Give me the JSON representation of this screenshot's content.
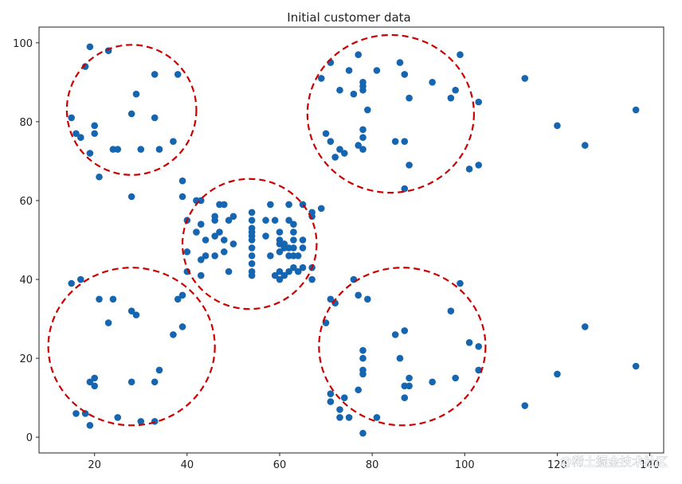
{
  "chart_data": {
    "type": "scatter",
    "title": "Initial customer data",
    "xlabel": "",
    "ylabel": "",
    "xlim": [
      8,
      143
    ],
    "ylim": [
      -4,
      104
    ],
    "xticks": [
      20,
      40,
      60,
      80,
      100,
      120,
      140
    ],
    "yticks": [
      0,
      20,
      40,
      60,
      80,
      100
    ],
    "grid": false,
    "point_color": "#1565b0",
    "circle_color": "#cc0000",
    "points": [
      [
        15,
        39
      ],
      [
        15,
        81
      ],
      [
        16,
        6
      ],
      [
        16,
        77
      ],
      [
        17,
        40
      ],
      [
        17,
        76
      ],
      [
        18,
        6
      ],
      [
        18,
        94
      ],
      [
        19,
        3
      ],
      [
        19,
        14
      ],
      [
        19,
        72
      ],
      [
        19,
        99
      ],
      [
        20,
        13
      ],
      [
        20,
        15
      ],
      [
        20,
        77
      ],
      [
        20,
        79
      ],
      [
        21,
        35
      ],
      [
        21,
        66
      ],
      [
        23,
        29
      ],
      [
        23,
        98
      ],
      [
        24,
        35
      ],
      [
        24,
        73
      ],
      [
        25,
        5
      ],
      [
        25,
        73
      ],
      [
        28,
        14
      ],
      [
        28,
        32
      ],
      [
        28,
        61
      ],
      [
        28,
        82
      ],
      [
        29,
        31
      ],
      [
        29,
        87
      ],
      [
        30,
        4
      ],
      [
        30,
        73
      ],
      [
        33,
        4
      ],
      [
        33,
        14
      ],
      [
        33,
        81
      ],
      [
        33,
        92
      ],
      [
        34,
        17
      ],
      [
        34,
        73
      ],
      [
        37,
        26
      ],
      [
        37,
        75
      ],
      [
        38,
        35
      ],
      [
        38,
        92
      ],
      [
        39,
        28
      ],
      [
        39,
        36
      ],
      [
        39,
        61
      ],
      [
        39,
        65
      ],
      [
        40,
        42
      ],
      [
        40,
        47
      ],
      [
        40,
        55
      ],
      [
        42,
        52
      ],
      [
        42,
        60
      ],
      [
        43,
        41
      ],
      [
        43,
        45
      ],
      [
        43,
        54
      ],
      [
        43,
        60
      ],
      [
        44,
        46
      ],
      [
        44,
        50
      ],
      [
        46,
        46
      ],
      [
        46,
        51
      ],
      [
        46,
        55
      ],
      [
        46,
        56
      ],
      [
        47,
        52
      ],
      [
        47,
        59
      ],
      [
        48,
        47
      ],
      [
        48,
        50
      ],
      [
        48,
        59
      ],
      [
        49,
        42
      ],
      [
        49,
        55
      ],
      [
        50,
        49
      ],
      [
        50,
        56
      ],
      [
        54,
        41
      ],
      [
        54,
        42
      ],
      [
        54,
        44
      ],
      [
        54,
        46
      ],
      [
        54,
        48
      ],
      [
        54,
        50
      ],
      [
        54,
        51
      ],
      [
        54,
        52
      ],
      [
        54,
        53
      ],
      [
        54,
        55
      ],
      [
        54,
        57
      ],
      [
        57,
        51
      ],
      [
        57,
        55
      ],
      [
        58,
        46
      ],
      [
        58,
        59
      ],
      [
        59,
        41
      ],
      [
        59,
        55
      ],
      [
        60,
        40
      ],
      [
        60,
        42
      ],
      [
        60,
        47
      ],
      [
        60,
        49
      ],
      [
        60,
        50
      ],
      [
        60,
        52
      ],
      [
        61,
        41
      ],
      [
        61,
        48
      ],
      [
        61,
        49
      ],
      [
        62,
        42
      ],
      [
        62,
        46
      ],
      [
        62,
        48
      ],
      [
        62,
        55
      ],
      [
        62,
        59
      ],
      [
        63,
        43
      ],
      [
        63,
        46
      ],
      [
        63,
        48
      ],
      [
        63,
        50
      ],
      [
        63,
        52
      ],
      [
        63,
        54
      ],
      [
        64,
        42
      ],
      [
        64,
        46
      ],
      [
        65,
        43
      ],
      [
        65,
        48
      ],
      [
        65,
        50
      ],
      [
        65,
        59
      ],
      [
        67,
        40
      ],
      [
        67,
        43
      ],
      [
        67,
        56
      ],
      [
        67,
        57
      ],
      [
        69,
        58
      ],
      [
        69,
        91
      ],
      [
        70,
        29
      ],
      [
        70,
        77
      ],
      [
        71,
        9
      ],
      [
        71,
        11
      ],
      [
        71,
        35
      ],
      [
        71,
        75
      ],
      [
        71,
        95
      ],
      [
        72,
        34
      ],
      [
        72,
        71
      ],
      [
        73,
        5
      ],
      [
        73,
        7
      ],
      [
        73,
        73
      ],
      [
        73,
        88
      ],
      [
        74,
        10
      ],
      [
        74,
        72
      ],
      [
        75,
        5
      ],
      [
        75,
        93
      ],
      [
        76,
        40
      ],
      [
        76,
        87
      ],
      [
        77,
        12
      ],
      [
        77,
        36
      ],
      [
        77,
        74
      ],
      [
        77,
        97
      ],
      [
        78,
        1
      ],
      [
        78,
        16
      ],
      [
        78,
        17
      ],
      [
        78,
        20
      ],
      [
        78,
        22
      ],
      [
        78,
        73
      ],
      [
        78,
        76
      ],
      [
        78,
        78
      ],
      [
        78,
        88
      ],
      [
        78,
        89
      ],
      [
        78,
        90
      ],
      [
        79,
        35
      ],
      [
        79,
        83
      ],
      [
        81,
        5
      ],
      [
        81,
        93
      ],
      [
        85,
        26
      ],
      [
        85,
        75
      ],
      [
        86,
        20
      ],
      [
        86,
        95
      ],
      [
        87,
        10
      ],
      [
        87,
        13
      ],
      [
        87,
        27
      ],
      [
        87,
        63
      ],
      [
        87,
        75
      ],
      [
        87,
        92
      ],
      [
        88,
        13
      ],
      [
        88,
        15
      ],
      [
        88,
        69
      ],
      [
        88,
        86
      ],
      [
        93,
        14
      ],
      [
        93,
        90
      ],
      [
        97,
        32
      ],
      [
        97,
        86
      ],
      [
        98,
        15
      ],
      [
        98,
        88
      ],
      [
        99,
        39
      ],
      [
        99,
        97
      ],
      [
        101,
        24
      ],
      [
        101,
        68
      ],
      [
        103,
        17
      ],
      [
        103,
        23
      ],
      [
        103,
        69
      ],
      [
        103,
        85
      ],
      [
        113,
        8
      ],
      [
        113,
        91
      ],
      [
        120,
        16
      ],
      [
        120,
        79
      ],
      [
        126,
        28
      ],
      [
        126,
        74
      ],
      [
        137,
        18
      ],
      [
        137,
        83
      ]
    ],
    "cluster_circles": [
      {
        "cx": 28,
        "cy": 83,
        "r_x": 14,
        "r_y": 16.5
      },
      {
        "cx": 84,
        "cy": 82,
        "r_x": 18,
        "r_y": 20
      },
      {
        "cx": 53.5,
        "cy": 49,
        "r_x": 14.5,
        "r_y": 16.5
      },
      {
        "cx": 28,
        "cy": 23,
        "r_x": 18,
        "r_y": 20
      },
      {
        "cx": 86.5,
        "cy": 23,
        "r_x": 18,
        "r_y": 20
      }
    ]
  },
  "watermark": "@稀土掘金技术社区"
}
